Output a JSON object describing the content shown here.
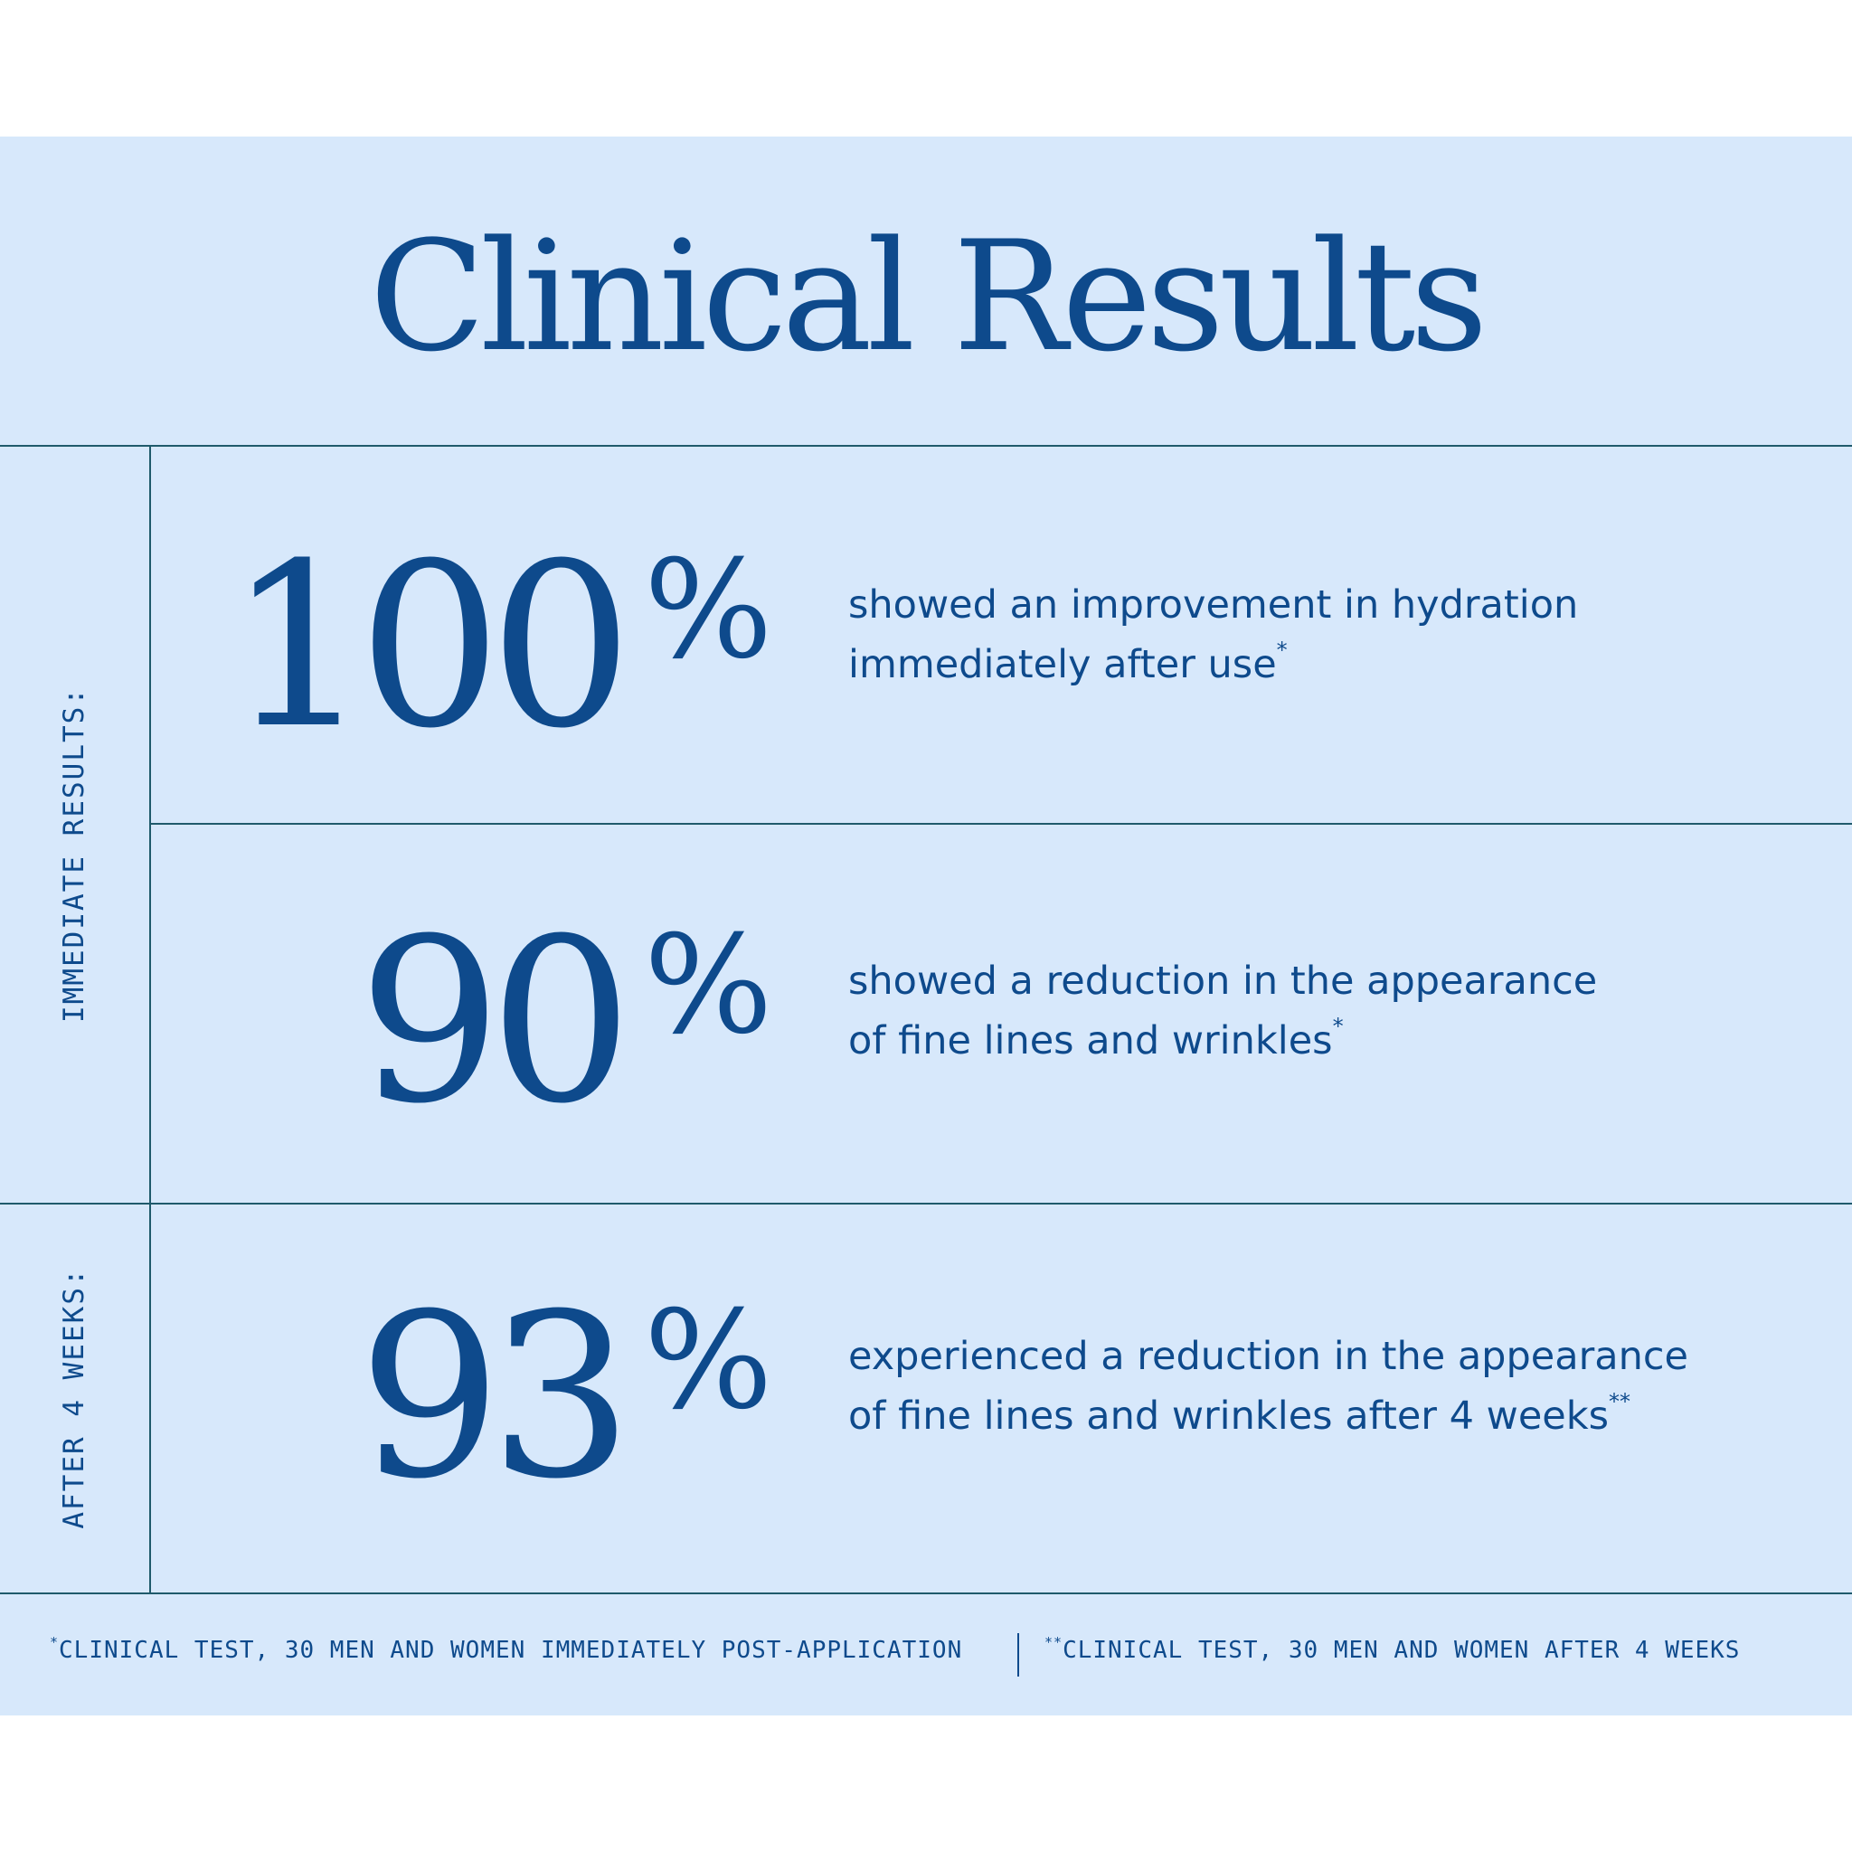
{
  "title": "Clinical Results",
  "sections": [
    {
      "label": "IMMEDIATE RESULTS:"
    },
    {
      "label": "AFTER 4 WEEKS:"
    }
  ],
  "stats": [
    {
      "number": "100",
      "percent": "%",
      "line1": "showed an improvement in hydration",
      "line2": "immediately after use",
      "mark": "*"
    },
    {
      "number": "90",
      "percent": "%",
      "line1": "showed a reduction in the appearance",
      "line2": "of fine lines and wrinkles",
      "mark": "*"
    },
    {
      "number": "93",
      "percent": "%",
      "line1": "experienced a reduction in the appearance",
      "line2": "of fine lines and wrinkles after 4 weeks",
      "mark": "**"
    }
  ],
  "footnotes": [
    {
      "mark": "*",
      "text": "CLINICAL TEST, 30 MEN AND WOMEN IMMEDIATELY POST-APPLICATION"
    },
    {
      "mark": "**",
      "text": "CLINICAL TEST, 30 MEN AND WOMEN AFTER 4 WEEKS"
    }
  ],
  "colors": {
    "background": "#d7e8fb",
    "text": "#0e4a8c",
    "rule": "#1f5a6b"
  }
}
